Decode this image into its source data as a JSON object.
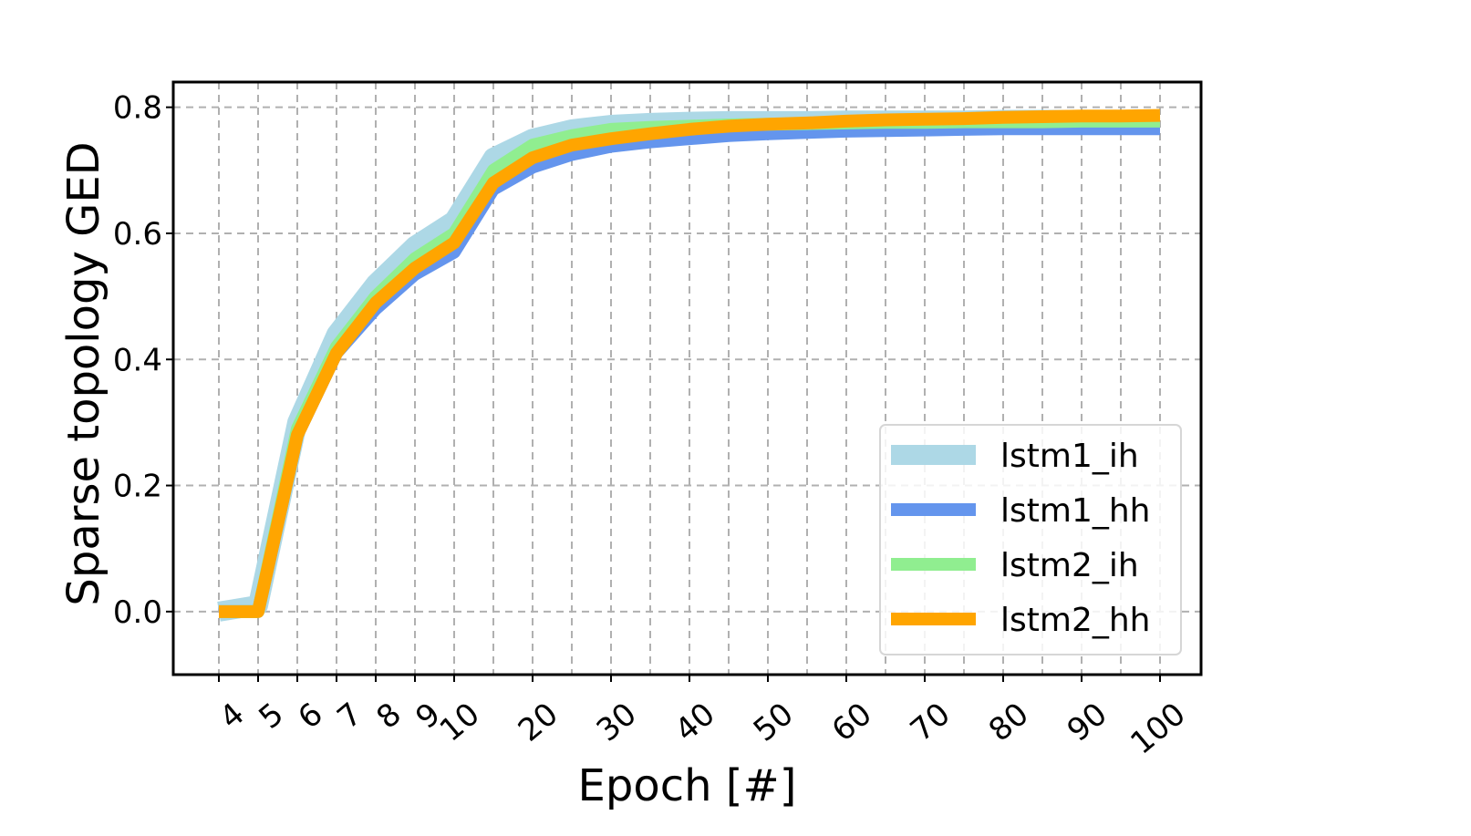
{
  "chart_data": {
    "type": "line",
    "xlabel": "Epoch [#]",
    "ylabel": "Sparse topology GED",
    "xticks": [
      "4",
      "5",
      "6",
      "7",
      "8",
      "9",
      "10",
      "20",
      "30",
      "40",
      "50",
      "60",
      "70",
      "80",
      "90",
      "100"
    ],
    "yticks": [
      "0.0",
      "0.2",
      "0.4",
      "0.6",
      "0.8"
    ],
    "ylim": [
      -0.1,
      0.84
    ],
    "grid": true,
    "legend_position": "lower-right",
    "x_order": [
      "4",
      "5",
      "6",
      "7",
      "8",
      "9",
      "10",
      "15",
      "20",
      "25",
      "30",
      "35",
      "40",
      "45",
      "50",
      "55",
      "60",
      "65",
      "70",
      "75",
      "80",
      "85",
      "90",
      "95",
      "100"
    ],
    "series": [
      {
        "name": "lstm1_ih",
        "color": "#add8e6",
        "width": 22,
        "values": [
          0.0,
          0.01,
          0.3,
          0.44,
          0.52,
          0.58,
          0.62,
          0.72,
          0.75,
          0.765,
          0.772,
          0.775,
          0.777,
          0.778,
          0.778,
          0.778,
          0.779,
          0.779,
          0.779,
          0.779,
          0.78,
          0.78,
          0.78,
          0.78,
          0.78
        ]
      },
      {
        "name": "lstm1_hh",
        "color": "#6495ed",
        "width": 14,
        "values": [
          0.0,
          0.0,
          0.28,
          0.41,
          0.48,
          0.535,
          0.57,
          0.67,
          0.705,
          0.725,
          0.738,
          0.745,
          0.75,
          0.755,
          0.758,
          0.76,
          0.762,
          0.763,
          0.764,
          0.765,
          0.766,
          0.766,
          0.766,
          0.766,
          0.766
        ]
      },
      {
        "name": "lstm2_ih",
        "color": "#90ee90",
        "width": 14,
        "values": [
          0.0,
          0.0,
          0.29,
          0.42,
          0.5,
          0.56,
          0.6,
          0.7,
          0.74,
          0.755,
          0.765,
          0.768,
          0.77,
          0.772,
          0.773,
          0.774,
          0.775,
          0.776,
          0.776,
          0.777,
          0.777,
          0.777,
          0.778,
          0.778,
          0.778
        ]
      },
      {
        "name": "lstm2_hh",
        "color": "#ffa500",
        "width": 14,
        "values": [
          0.0,
          0.0,
          0.28,
          0.41,
          0.49,
          0.545,
          0.585,
          0.68,
          0.72,
          0.74,
          0.75,
          0.758,
          0.765,
          0.77,
          0.773,
          0.775,
          0.778,
          0.78,
          0.781,
          0.782,
          0.784,
          0.785,
          0.786,
          0.786,
          0.787
        ]
      }
    ]
  }
}
